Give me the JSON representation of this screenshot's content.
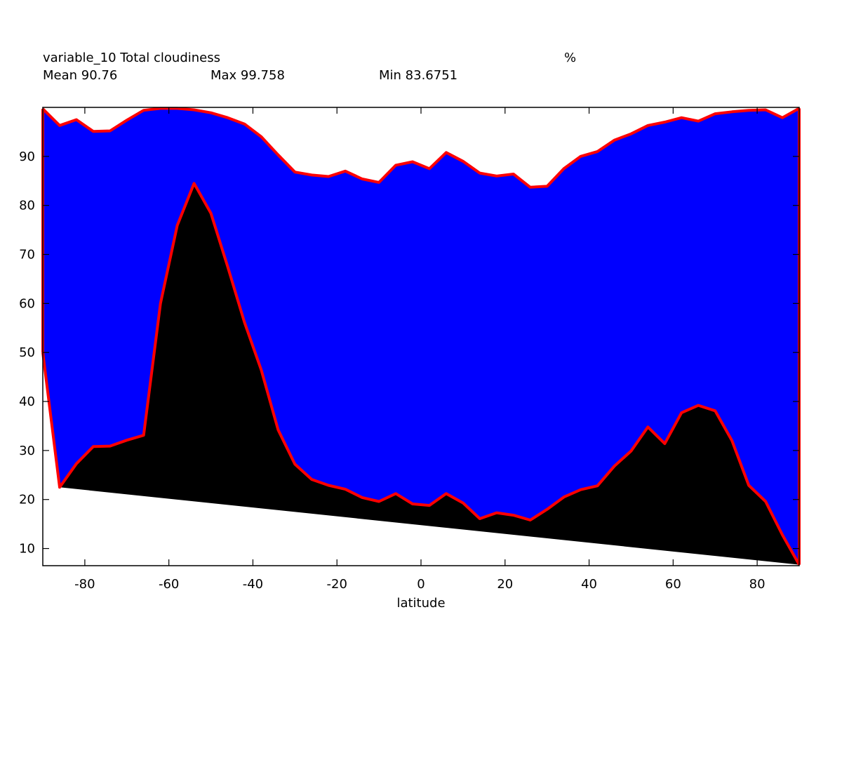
{
  "header": {
    "title": "variable_10 Total cloudiness",
    "units": "%",
    "mean": "Mean 90.76",
    "max": "Max 99.758",
    "min": "Min 83.6751"
  },
  "chart_data": {
    "type": "area",
    "title": "variable_10 Total cloudiness",
    "xlabel": "latitude",
    "ylabel": "",
    "xlim": [
      -90,
      90
    ],
    "ylim": [
      6.5,
      100
    ],
    "xticks": [
      -80,
      -60,
      -40,
      -20,
      0,
      20,
      40,
      60,
      80
    ],
    "yticks": [
      10,
      20,
      30,
      40,
      50,
      60,
      70,
      80,
      90
    ],
    "grid": false,
    "colors": {
      "fill": "#0000ff",
      "line": "#ff0000",
      "dark": "#000000"
    },
    "series": [
      {
        "role": "upper",
        "x": [
          -90,
          -86,
          -82,
          -78,
          -74,
          -70,
          -66,
          -62,
          -58,
          -54,
          -50,
          -46,
          -42,
          -38,
          -34,
          -30,
          -26,
          -22,
          -18,
          -14,
          -10,
          -6,
          -2,
          2,
          6,
          10,
          14,
          18,
          22,
          26,
          30,
          34,
          38,
          42,
          46,
          50,
          54,
          58,
          62,
          66,
          70,
          74,
          78,
          82,
          86,
          90
        ],
        "y": [
          99.7,
          96.3,
          97.5,
          95.1,
          95.2,
          97.4,
          99.4,
          99.8,
          99.8,
          99.5,
          98.9,
          97.9,
          96.6,
          94.0,
          90.3,
          86.8,
          86.2,
          85.9,
          87.0,
          85.4,
          84.7,
          88.2,
          88.9,
          87.5,
          90.8,
          89.0,
          86.6,
          86.0,
          86.4,
          83.7,
          83.9,
          87.5,
          90.0,
          91.0,
          93.3,
          94.6,
          96.3,
          97.0,
          97.9,
          97.2,
          98.7,
          99.1,
          99.4,
          99.5,
          97.9,
          99.8
        ]
      },
      {
        "role": "lower",
        "x": [
          -90,
          -86,
          -82,
          -78,
          -74,
          -70,
          -66,
          -62,
          -58,
          -54,
          -50,
          -46,
          -42,
          -38,
          -34,
          -30,
          -26,
          -22,
          -18,
          -14,
          -10,
          -6,
          -2,
          2,
          6,
          10,
          14,
          18,
          22,
          26,
          30,
          34,
          38,
          42,
          46,
          50,
          54,
          58,
          62,
          66,
          70,
          74,
          78,
          82,
          86,
          90
        ],
        "y": [
          50.0,
          22.5,
          27.3,
          30.8,
          30.9,
          32.1,
          33.1,
          60.0,
          75.9,
          84.5,
          78.4,
          67.5,
          56.1,
          46.4,
          34.2,
          27.2,
          24.1,
          22.9,
          22.1,
          20.4,
          19.6,
          21.2,
          19.1,
          18.8,
          21.2,
          19.3,
          16.1,
          17.3,
          16.8,
          15.8,
          18.0,
          20.5,
          22.0,
          22.8,
          26.8,
          29.9,
          34.8,
          31.4,
          37.7,
          39.2,
          38.1,
          32.0,
          22.9,
          19.6,
          12.8,
          6.7
        ]
      }
    ]
  },
  "axes": {
    "x_ticks": [
      "-80",
      "-60",
      "-40",
      "-20",
      "0",
      "20",
      "40",
      "60",
      "80"
    ],
    "y_ticks": [
      "10",
      "20",
      "30",
      "40",
      "50",
      "60",
      "70",
      "80",
      "90"
    ]
  }
}
